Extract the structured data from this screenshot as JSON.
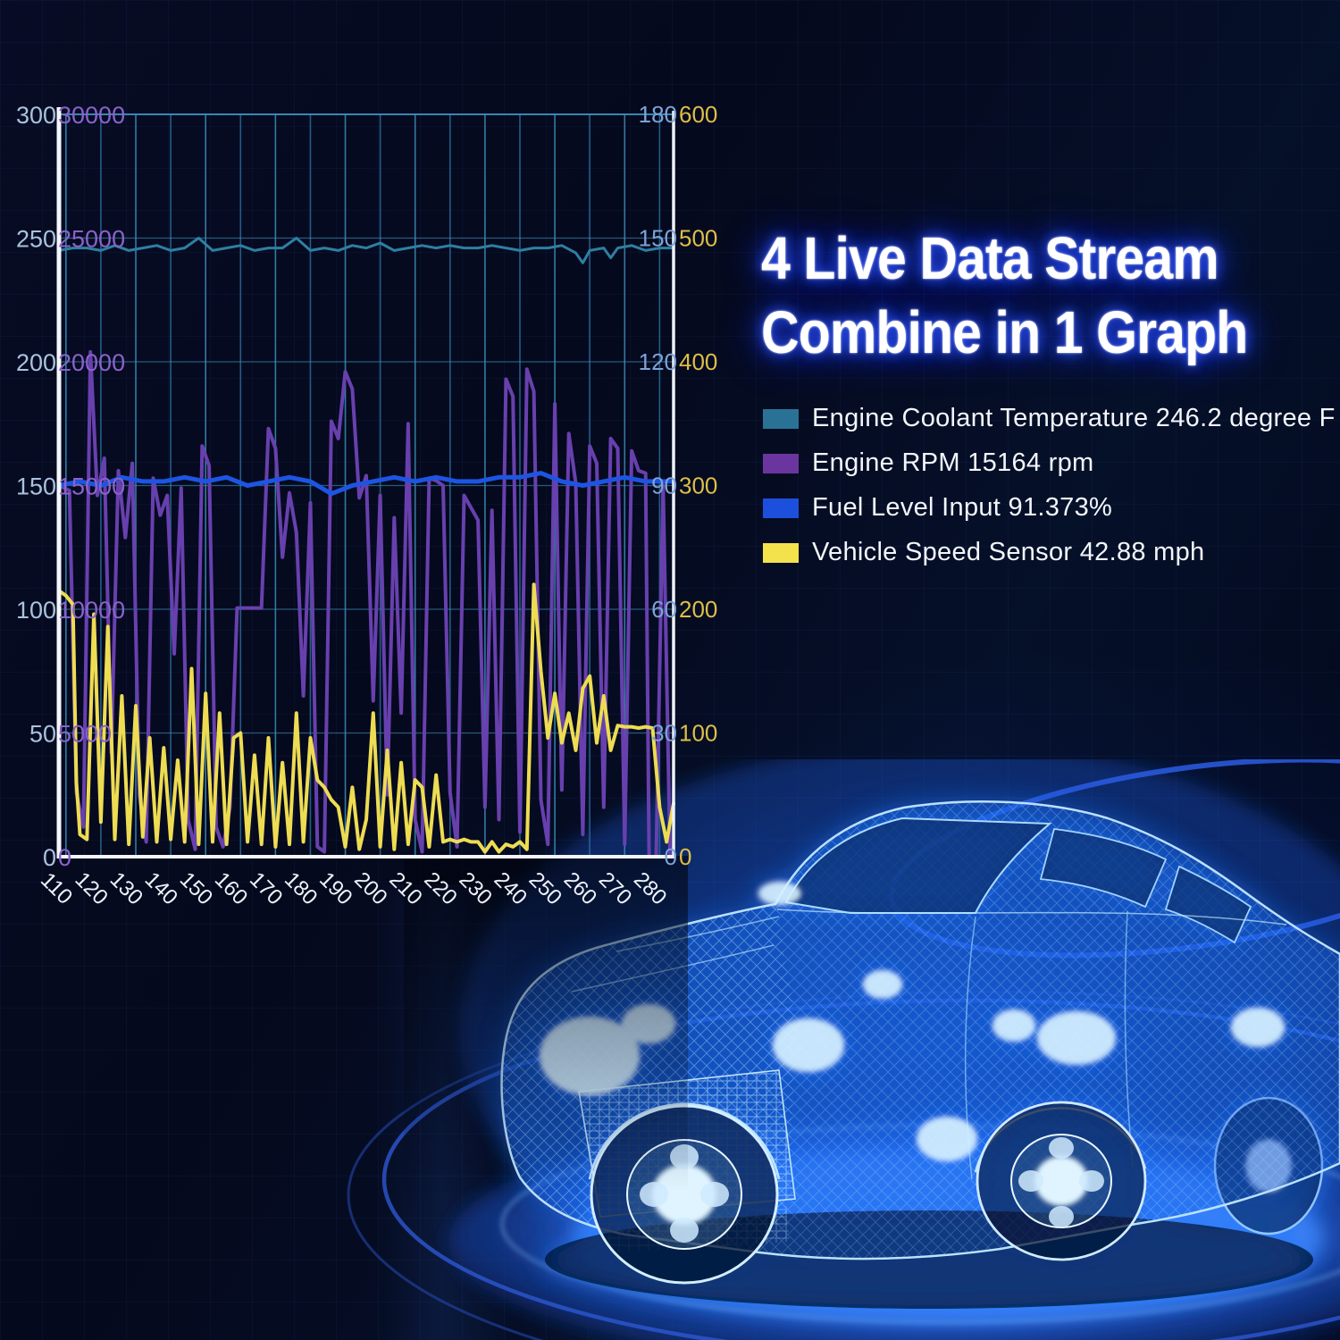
{
  "title": {
    "line1": "4 Live Data Stream",
    "line2": "Combine in 1 Graph"
  },
  "legend": {
    "items": [
      {
        "label": "Engine Coolant Temperature 246.2 degree F",
        "color": "#2a7295"
      },
      {
        "label": "Engine RPM 15164 rpm",
        "color": "#6b35a0"
      },
      {
        "label": "Fuel Level Input 91.373%",
        "color": "#1c50dc"
      },
      {
        "label": "Vehicle Speed Sensor 42.88 mph",
        "color": "#f3e24c"
      }
    ]
  },
  "chart_data": {
    "type": "line",
    "grid": true,
    "legend_position": "right",
    "x_range": [
      108,
      284
    ],
    "x_ticks": [
      110,
      120,
      130,
      140,
      150,
      160,
      170,
      180,
      190,
      200,
      210,
      220,
      230,
      240,
      250,
      260,
      270,
      280
    ],
    "axes": {
      "left_outer": {
        "series": "coolant",
        "range": [
          0,
          300
        ],
        "ticks": [
          0,
          50,
          100,
          150,
          200,
          250,
          300
        ]
      },
      "left_inner": {
        "series": "rpm",
        "range": [
          0,
          30000
        ],
        "ticks": [
          0,
          5000,
          10000,
          15000,
          20000,
          25000,
          30000
        ]
      },
      "right_inner": {
        "series": "fuel",
        "range": [
          0,
          180
        ],
        "ticks": [
          0,
          30,
          60,
          90,
          120,
          150,
          180
        ]
      },
      "right_outer": {
        "series": "speed",
        "range": [
          0,
          600
        ],
        "ticks": [
          0,
          100,
          200,
          300,
          400,
          500,
          600
        ]
      }
    },
    "series": [
      {
        "key": "coolant",
        "name": "Engine Coolant Temperature",
        "unit": "degree F",
        "current": 246.2,
        "color": "#2e7fa2",
        "label_color": "#a9c3dd",
        "axis_max": 300,
        "points": [
          [
            108,
            245
          ],
          [
            112,
            246
          ],
          [
            116,
            246
          ],
          [
            120,
            245
          ],
          [
            124,
            247
          ],
          [
            128,
            245
          ],
          [
            132,
            246
          ],
          [
            136,
            247
          ],
          [
            140,
            245
          ],
          [
            144,
            246
          ],
          [
            148,
            250
          ],
          [
            152,
            245
          ],
          [
            156,
            246
          ],
          [
            160,
            247
          ],
          [
            164,
            245
          ],
          [
            168,
            246
          ],
          [
            172,
            246
          ],
          [
            176,
            250
          ],
          [
            180,
            245
          ],
          [
            184,
            246
          ],
          [
            188,
            245
          ],
          [
            192,
            247
          ],
          [
            196,
            246
          ],
          [
            200,
            248
          ],
          [
            204,
            245
          ],
          [
            208,
            246
          ],
          [
            212,
            247
          ],
          [
            216,
            246
          ],
          [
            220,
            247
          ],
          [
            224,
            246
          ],
          [
            228,
            246
          ],
          [
            232,
            247
          ],
          [
            236,
            246
          ],
          [
            240,
            245
          ],
          [
            244,
            246
          ],
          [
            248,
            246
          ],
          [
            252,
            247
          ],
          [
            256,
            244
          ],
          [
            258,
            240
          ],
          [
            260,
            245
          ],
          [
            264,
            246
          ],
          [
            266,
            242
          ],
          [
            268,
            246
          ],
          [
            272,
            247
          ],
          [
            276,
            245
          ],
          [
            280,
            246
          ],
          [
            284,
            246
          ]
        ]
      },
      {
        "key": "rpm",
        "name": "Engine RPM",
        "unit": "rpm",
        "current": 15164,
        "color": "#6840ae",
        "label_color": "#8a62cb",
        "axis_max": 30000,
        "points": [
          [
            108,
            15000
          ],
          [
            111,
            14800
          ],
          [
            113,
            2600
          ],
          [
            115,
            1200
          ],
          [
            117,
            20400
          ],
          [
            119,
            14600
          ],
          [
            121,
            16100
          ],
          [
            123,
            4200
          ],
          [
            125,
            15600
          ],
          [
            127,
            12900
          ],
          [
            129,
            15900
          ],
          [
            131,
            2500
          ],
          [
            133,
            600
          ],
          [
            135,
            15300
          ],
          [
            137,
            13800
          ],
          [
            139,
            14600
          ],
          [
            141,
            8200
          ],
          [
            143,
            14900
          ],
          [
            145,
            1500
          ],
          [
            147,
            300
          ],
          [
            149,
            16600
          ],
          [
            151,
            15800
          ],
          [
            153,
            1200
          ],
          [
            155,
            400
          ],
          [
            157,
            2000
          ],
          [
            159,
            10050
          ],
          [
            166,
            10050
          ],
          [
            168,
            17300
          ],
          [
            170,
            16500
          ],
          [
            172,
            12100
          ],
          [
            174,
            14700
          ],
          [
            176,
            13100
          ],
          [
            178,
            6500
          ],
          [
            180,
            14300
          ],
          [
            182,
            400
          ],
          [
            184,
            200
          ],
          [
            186,
            17600
          ],
          [
            188,
            16900
          ],
          [
            190,
            19600
          ],
          [
            192,
            18900
          ],
          [
            194,
            14500
          ],
          [
            196,
            15400
          ],
          [
            198,
            6300
          ],
          [
            200,
            14600
          ],
          [
            202,
            2500
          ],
          [
            204,
            13700
          ],
          [
            206,
            5800
          ],
          [
            208,
            17500
          ],
          [
            210,
            1500
          ],
          [
            212,
            200
          ],
          [
            214,
            15300
          ],
          [
            216,
            15200
          ],
          [
            218,
            15000
          ],
          [
            220,
            2600
          ],
          [
            222,
            400
          ],
          [
            224,
            14600
          ],
          [
            226,
            14100
          ],
          [
            228,
            13600
          ],
          [
            230,
            2000
          ],
          [
            232,
            14000
          ],
          [
            234,
            1500
          ],
          [
            236,
            19300
          ],
          [
            238,
            18600
          ],
          [
            240,
            1000
          ],
          [
            242,
            19700
          ],
          [
            244,
            18800
          ],
          [
            246,
            2300
          ],
          [
            248,
            500
          ],
          [
            250,
            18300
          ],
          [
            252,
            2700
          ],
          [
            254,
            17100
          ],
          [
            256,
            15100
          ],
          [
            258,
            900
          ],
          [
            260,
            16600
          ],
          [
            262,
            15900
          ],
          [
            264,
            2000
          ],
          [
            266,
            16900
          ],
          [
            268,
            16500
          ],
          [
            270,
            500
          ],
          [
            272,
            16400
          ],
          [
            274,
            15600
          ],
          [
            276,
            15500
          ],
          [
            277,
            0
          ],
          [
            279,
            0
          ],
          [
            281,
            15000
          ],
          [
            283,
            0
          ],
          [
            284,
            0
          ]
        ]
      },
      {
        "key": "fuel",
        "name": "Fuel Level Input",
        "unit": "%",
        "current": 91.373,
        "color": "#1d55e3",
        "label_color": "#7da3d8",
        "axis_max": 180,
        "points": [
          [
            108,
            90
          ],
          [
            114,
            91
          ],
          [
            120,
            90
          ],
          [
            126,
            92
          ],
          [
            132,
            91
          ],
          [
            138,
            91
          ],
          [
            144,
            92
          ],
          [
            150,
            91
          ],
          [
            156,
            92
          ],
          [
            162,
            90
          ],
          [
            168,
            91
          ],
          [
            174,
            92
          ],
          [
            180,
            91
          ],
          [
            186,
            88
          ],
          [
            192,
            90
          ],
          [
            198,
            91
          ],
          [
            204,
            92
          ],
          [
            210,
            91
          ],
          [
            216,
            92
          ],
          [
            222,
            91
          ],
          [
            228,
            91
          ],
          [
            234,
            92
          ],
          [
            240,
            92
          ],
          [
            246,
            93
          ],
          [
            252,
            91
          ],
          [
            258,
            90
          ],
          [
            264,
            91
          ],
          [
            270,
            92
          ],
          [
            276,
            91
          ],
          [
            284,
            91
          ]
        ]
      },
      {
        "key": "speed",
        "name": "Vehicle Speed Sensor",
        "unit": "mph",
        "current": 42.88,
        "color": "#eedc52",
        "label_color": "#ddbe49",
        "axis_max": 600,
        "points": [
          [
            108,
            215
          ],
          [
            110,
            211
          ],
          [
            112,
            204
          ],
          [
            113,
            60
          ],
          [
            114,
            18
          ],
          [
            116,
            14
          ],
          [
            118,
            196
          ],
          [
            120,
            28
          ],
          [
            122,
            186
          ],
          [
            124,
            14
          ],
          [
            126,
            130
          ],
          [
            128,
            10
          ],
          [
            130,
            122
          ],
          [
            132,
            16
          ],
          [
            134,
            96
          ],
          [
            136,
            12
          ],
          [
            138,
            88
          ],
          [
            140,
            14
          ],
          [
            142,
            78
          ],
          [
            144,
            12
          ],
          [
            146,
            152
          ],
          [
            148,
            10
          ],
          [
            150,
            132
          ],
          [
            152,
            12
          ],
          [
            154,
            116
          ],
          [
            156,
            10
          ],
          [
            158,
            96
          ],
          [
            160,
            100
          ],
          [
            162,
            12
          ],
          [
            164,
            82
          ],
          [
            166,
            10
          ],
          [
            168,
            96
          ],
          [
            170,
            8
          ],
          [
            172,
            76
          ],
          [
            174,
            10
          ],
          [
            176,
            116
          ],
          [
            178,
            12
          ],
          [
            180,
            96
          ],
          [
            182,
            62
          ],
          [
            184,
            56
          ],
          [
            186,
            46
          ],
          [
            188,
            40
          ],
          [
            190,
            8
          ],
          [
            192,
            56
          ],
          [
            194,
            6
          ],
          [
            196,
            30
          ],
          [
            198,
            116
          ],
          [
            200,
            8
          ],
          [
            202,
            86
          ],
          [
            204,
            6
          ],
          [
            206,
            76
          ],
          [
            208,
            10
          ],
          [
            210,
            62
          ],
          [
            212,
            56
          ],
          [
            214,
            8
          ],
          [
            216,
            66
          ],
          [
            218,
            12
          ],
          [
            220,
            14
          ],
          [
            222,
            12
          ],
          [
            224,
            14
          ],
          [
            226,
            12
          ],
          [
            228,
            12
          ],
          [
            230,
            4
          ],
          [
            232,
            12
          ],
          [
            234,
            4
          ],
          [
            236,
            10
          ],
          [
            238,
            8
          ],
          [
            240,
            12
          ],
          [
            242,
            6
          ],
          [
            244,
            220
          ],
          [
            246,
            150
          ],
          [
            248,
            96
          ],
          [
            250,
            132
          ],
          [
            252,
            92
          ],
          [
            254,
            116
          ],
          [
            256,
            86
          ],
          [
            258,
            136
          ],
          [
            260,
            146
          ],
          [
            262,
            92
          ],
          [
            264,
            130
          ],
          [
            266,
            86
          ],
          [
            268,
            106
          ],
          [
            270,
            105
          ],
          [
            272,
            105
          ],
          [
            274,
            104
          ],
          [
            276,
            105
          ],
          [
            278,
            104
          ],
          [
            280,
            40
          ],
          [
            282,
            12
          ],
          [
            284,
            43
          ]
        ]
      }
    ]
  }
}
